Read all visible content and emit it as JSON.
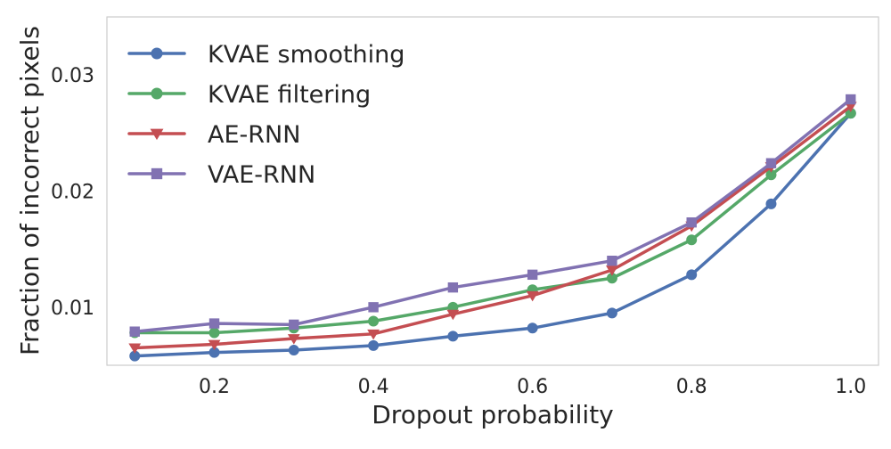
{
  "chart_data": {
    "type": "line",
    "title": "",
    "xlabel": "Dropout probability",
    "ylabel": "Fraction of incorrect pixels",
    "xlim": [
      0.065,
      1.035
    ],
    "ylim": [
      0.005,
      0.035
    ],
    "xticks": [
      0.2,
      0.4,
      0.6,
      0.8,
      1.0
    ],
    "xtick_labels": [
      "0.2",
      "0.4",
      "0.6",
      "0.8",
      "1.0"
    ],
    "yticks": [
      0.01,
      0.02,
      0.03
    ],
    "ytick_labels": [
      "0.01",
      "0.02",
      "0.03"
    ],
    "grid": false,
    "legend_position": "top-left",
    "x": [
      0.1,
      0.2,
      0.3,
      0.4,
      0.5,
      0.6,
      0.7,
      0.8,
      0.9,
      1.0
    ],
    "series": [
      {
        "name": "KVAE smoothing",
        "color": "#4c72b0",
        "marker": "circle",
        "values": [
          0.0058,
          0.0061,
          0.0063,
          0.0067,
          0.0075,
          0.0082,
          0.0095,
          0.0128,
          0.0189,
          0.0267
        ]
      },
      {
        "name": "KVAE filtering",
        "color": "#55a868",
        "marker": "circle",
        "values": [
          0.0078,
          0.0078,
          0.0082,
          0.0088,
          0.01,
          0.0115,
          0.0125,
          0.0158,
          0.0214,
          0.0267
        ]
      },
      {
        "name": "AE-RNN",
        "color": "#c44e52",
        "marker": "triangle-down",
        "values": [
          0.0065,
          0.0068,
          0.0073,
          0.0077,
          0.0094,
          0.011,
          0.0132,
          0.017,
          0.0221,
          0.0273
        ]
      },
      {
        "name": "VAE-RNN",
        "color": "#8172b2",
        "marker": "square",
        "values": [
          0.0079,
          0.0086,
          0.0085,
          0.01,
          0.0117,
          0.0128,
          0.014,
          0.0173,
          0.0224,
          0.0279
        ]
      }
    ]
  }
}
